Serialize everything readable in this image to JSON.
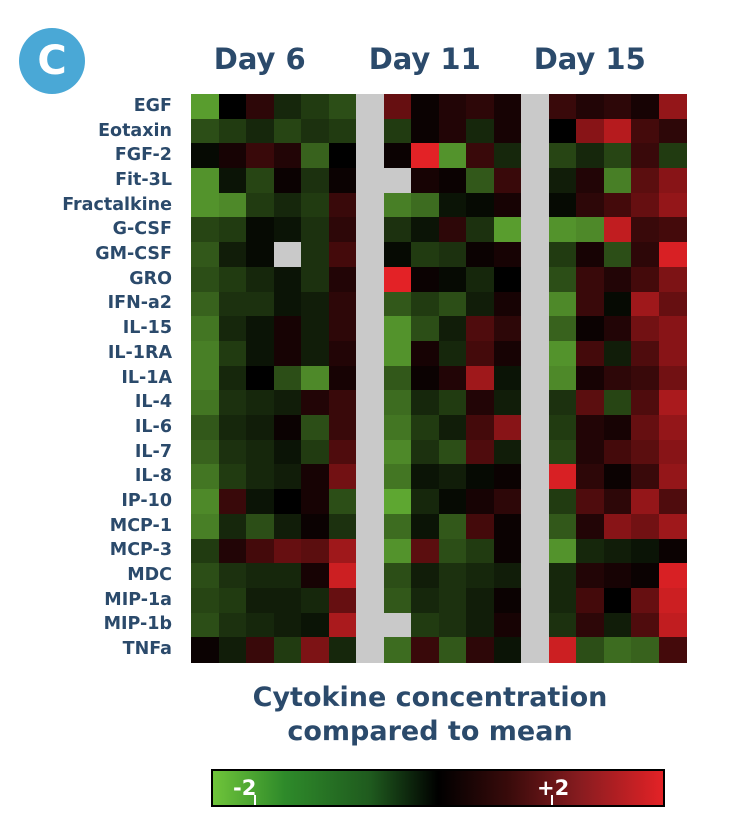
{
  "panel_label": "C",
  "chart_data": {
    "type": "heatmap",
    "title": "",
    "column_groups": [
      "Day 6",
      "Day 11",
      "Day 15"
    ],
    "columns_per_group": 6,
    "rows": [
      "EGF",
      "Eotaxin",
      "FGF-2",
      "Fit-3L",
      "Fractalkine",
      "G-CSF",
      "GM-CSF",
      "GRO",
      "IFN-a2",
      "IL-15",
      "IL-1RA",
      "IL-1A",
      "IL-4",
      "IL-6",
      "IL-7",
      "IL-8",
      "IP-10",
      "MCP-1",
      "MCP-3",
      "MDC",
      "MIP-1a",
      "MIP-1b",
      "TNFa"
    ],
    "scale": {
      "min": -2,
      "max": 2,
      "min_label": "-2",
      "max_label": "+2",
      "low_color": "#6fc43a",
      "mid_color": "#000000",
      "high_color": "#e32226",
      "missing_color": "#c9c9c9"
    },
    "values": [
      [
        -1.6,
        0.0,
        0.4,
        -0.4,
        -0.6,
        -0.8,
        null,
        0.9,
        0.1,
        0.3,
        0.4,
        0.2,
        null,
        0.5,
        0.3,
        0.4,
        0.2,
        1.3
      ],
      [
        -0.8,
        -0.6,
        -0.4,
        -0.7,
        -0.5,
        -0.6,
        null,
        -0.6,
        0.1,
        0.3,
        -0.4,
        0.2,
        null,
        0.0,
        1.2,
        1.6,
        0.6,
        0.4
      ],
      [
        -0.1,
        0.2,
        0.5,
        0.3,
        -1.0,
        0.0,
        null,
        0.1,
        2.0,
        -1.5,
        0.5,
        -0.4,
        null,
        -0.7,
        -0.4,
        -0.7,
        0.5,
        -0.6
      ],
      [
        -1.5,
        -0.2,
        -0.7,
        0.1,
        -0.5,
        0.1,
        null,
        null,
        0.2,
        0.1,
        -0.9,
        0.5,
        null,
        -0.3,
        0.3,
        -1.3,
        0.8,
        1.2
      ],
      [
        -1.5,
        -1.4,
        -0.6,
        -0.4,
        -0.6,
        0.5,
        null,
        -1.3,
        -1.1,
        -0.2,
        -0.1,
        0.2,
        null,
        -0.1,
        0.4,
        0.6,
        0.9,
        1.3
      ],
      [
        -0.7,
        -0.6,
        -0.1,
        -0.2,
        -0.5,
        0.4,
        null,
        -0.5,
        -0.2,
        0.4,
        -0.5,
        -1.6,
        null,
        -1.5,
        -1.4,
        1.7,
        0.5,
        0.6
      ],
      [
        -0.9,
        -0.3,
        -0.1,
        null,
        -0.5,
        0.6,
        null,
        -0.1,
        -0.6,
        -0.5,
        0.1,
        0.2,
        null,
        -0.6,
        0.2,
        -0.8,
        0.4,
        1.9
      ],
      [
        -0.8,
        -0.6,
        -0.4,
        -0.2,
        -0.5,
        0.3,
        null,
        2.0,
        0.1,
        -0.1,
        -0.4,
        0.0,
        null,
        -0.8,
        0.5,
        0.3,
        0.6,
        1.1
      ],
      [
        -1.0,
        -0.5,
        -0.5,
        -0.2,
        -0.3,
        0.4,
        null,
        -0.9,
        -0.6,
        -0.8,
        -0.3,
        0.2,
        null,
        -1.4,
        0.5,
        -0.1,
        1.4,
        0.9
      ],
      [
        -1.2,
        -0.4,
        -0.2,
        0.2,
        -0.3,
        0.4,
        null,
        -1.5,
        -0.8,
        -0.3,
        0.7,
        0.4,
        null,
        -1.0,
        0.1,
        0.3,
        1.0,
        1.2
      ],
      [
        -1.3,
        -0.6,
        -0.2,
        0.2,
        -0.3,
        0.3,
        null,
        -1.5,
        0.2,
        -0.4,
        0.6,
        0.2,
        null,
        -1.5,
        0.6,
        -0.3,
        0.7,
        1.2
      ],
      [
        -1.3,
        -0.4,
        0.0,
        -0.8,
        -1.4,
        0.2,
        null,
        -0.9,
        0.1,
        0.3,
        1.4,
        -0.2,
        null,
        -1.4,
        0.2,
        0.4,
        0.5,
        1.0
      ],
      [
        -1.2,
        -0.5,
        -0.4,
        -0.3,
        0.3,
        0.5,
        null,
        -1.1,
        -0.4,
        -0.6,
        0.3,
        -0.3,
        null,
        -0.5,
        0.8,
        -0.7,
        0.7,
        1.5
      ],
      [
        -0.9,
        -0.4,
        -0.3,
        0.1,
        -0.8,
        0.5,
        null,
        -1.2,
        -0.6,
        -0.3,
        0.6,
        1.2,
        null,
        -0.6,
        0.3,
        0.2,
        0.9,
        1.3
      ],
      [
        -1.0,
        -0.5,
        -0.4,
        -0.2,
        -0.6,
        0.7,
        null,
        -1.4,
        -0.5,
        -0.8,
        0.7,
        -0.3,
        null,
        -0.7,
        0.3,
        0.6,
        0.8,
        1.2
      ],
      [
        -1.2,
        -0.6,
        -0.4,
        -0.3,
        0.2,
        1.0,
        null,
        -1.2,
        -0.2,
        -0.3,
        -0.1,
        0.1,
        null,
        1.9,
        0.4,
        0.1,
        0.5,
        1.3
      ],
      [
        -1.4,
        0.5,
        -0.2,
        0.0,
        0.2,
        -0.8,
        null,
        -1.7,
        -0.4,
        -0.1,
        0.2,
        0.4,
        null,
        -0.6,
        0.7,
        0.4,
        1.3,
        0.7
      ],
      [
        -1.3,
        -0.4,
        -0.8,
        -0.3,
        0.1,
        -0.5,
        null,
        -1.1,
        -0.2,
        -0.9,
        0.6,
        0.1,
        null,
        -0.9,
        0.3,
        1.2,
        1.0,
        1.4
      ],
      [
        -0.6,
        0.3,
        0.6,
        0.9,
        0.8,
        1.4,
        null,
        -1.5,
        0.8,
        -0.8,
        -0.6,
        0.1,
        null,
        -1.5,
        -0.4,
        -0.3,
        -0.2,
        0.1
      ],
      [
        -0.8,
        -0.5,
        -0.4,
        -0.4,
        0.2,
        1.8,
        null,
        -0.8,
        -0.3,
        -0.5,
        -0.4,
        -0.3,
        null,
        -0.4,
        0.3,
        0.2,
        0.1,
        1.9
      ],
      [
        -0.7,
        -0.6,
        -0.3,
        -0.3,
        -0.4,
        0.9,
        null,
        -0.9,
        -0.4,
        -0.5,
        -0.3,
        0.1,
        null,
        -0.4,
        0.6,
        0.0,
        0.9,
        1.8
      ],
      [
        -0.8,
        -0.5,
        -0.4,
        -0.3,
        -0.2,
        1.5,
        null,
        null,
        -0.6,
        -0.5,
        -0.3,
        0.2,
        null,
        -0.5,
        0.4,
        -0.3,
        0.7,
        1.7
      ],
      [
        0.1,
        -0.3,
        0.5,
        -0.6,
        1.1,
        -0.4,
        null,
        -1.1,
        0.5,
        -0.9,
        0.4,
        -0.2,
        null,
        1.8,
        -0.8,
        -1.1,
        -1.0,
        0.6
      ]
    ],
    "legend_title_lines": [
      "Cytokine concentration",
      "compared to mean"
    ]
  }
}
